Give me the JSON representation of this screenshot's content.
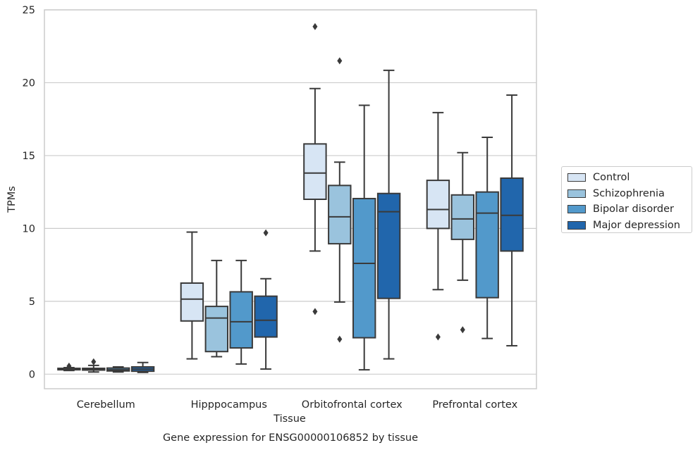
{
  "chart_data": {
    "type": "box",
    "title": "",
    "caption": "Gene expression for ENSG00000106852 by tissue",
    "xlabel": "Tissue",
    "ylabel": "TPMs",
    "ylim": [
      -1,
      25
    ],
    "yticks": [
      0,
      5,
      10,
      15,
      20,
      25
    ],
    "grid": "horizontal",
    "legend_position": "right",
    "categories": [
      "Cerebellum",
      "Hipppocampus",
      "Orbitofrontal cortex",
      "Prefrontal cortex"
    ],
    "series": [
      {
        "name": "Control",
        "color": "#d7e5f4",
        "boxes": [
          {
            "whislo": 0.25,
            "q1": 0.3,
            "med": 0.35,
            "q3": 0.4,
            "whishi": 0.45,
            "fliers": [
              0.55
            ]
          },
          {
            "whislo": 1.05,
            "q1": 3.65,
            "med": 5.15,
            "q3": 6.25,
            "whishi": 9.75,
            "fliers": []
          },
          {
            "whislo": 8.45,
            "q1": 12.0,
            "med": 13.8,
            "q3": 15.8,
            "whishi": 19.6,
            "fliers": [
              4.3,
              23.85
            ]
          },
          {
            "whislo": 5.8,
            "q1": 10.0,
            "med": 11.3,
            "q3": 13.3,
            "whishi": 17.95,
            "fliers": [
              2.55
            ]
          }
        ]
      },
      {
        "name": "Schizophrenia",
        "color": "#9ac3dd",
        "boxes": [
          {
            "whislo": 0.15,
            "q1": 0.28,
            "med": 0.32,
            "q3": 0.4,
            "whishi": 0.6,
            "fliers": [
              0.85
            ]
          },
          {
            "whislo": 1.2,
            "q1": 1.55,
            "med": 3.85,
            "q3": 4.65,
            "whishi": 7.8,
            "fliers": []
          },
          {
            "whislo": 4.95,
            "q1": 8.95,
            "med": 10.8,
            "q3": 12.95,
            "whishi": 14.55,
            "fliers": [
              2.4,
              21.5
            ]
          },
          {
            "whislo": 6.45,
            "q1": 9.25,
            "med": 10.65,
            "q3": 12.3,
            "whishi": 15.2,
            "fliers": [
              3.05
            ]
          }
        ]
      },
      {
        "name": "Bipolar disorder",
        "color": "#5299cb",
        "boxes": [
          {
            "whislo": 0.15,
            "q1": 0.22,
            "med": 0.3,
            "q3": 0.42,
            "whishi": 0.5,
            "fliers": []
          },
          {
            "whislo": 0.7,
            "q1": 1.8,
            "med": 3.6,
            "q3": 5.65,
            "whishi": 7.8,
            "fliers": []
          },
          {
            "whislo": 0.3,
            "q1": 2.5,
            "med": 7.6,
            "q3": 12.05,
            "whishi": 18.45,
            "fliers": []
          },
          {
            "whislo": 2.45,
            "q1": 5.25,
            "med": 11.05,
            "q3": 12.5,
            "whishi": 16.25,
            "fliers": []
          }
        ]
      },
      {
        "name": "Major depression",
        "color": "#2166ac",
        "boxes": [
          {
            "whislo": 0.12,
            "q1": 0.2,
            "med": 0.35,
            "q3": 0.5,
            "whishi": 0.8,
            "fliers": []
          },
          {
            "whislo": 0.35,
            "q1": 2.55,
            "med": 3.7,
            "q3": 5.35,
            "whishi": 6.55,
            "fliers": [
              9.7
            ]
          },
          {
            "whislo": 1.05,
            "q1": 5.2,
            "med": 11.15,
            "q3": 12.4,
            "whishi": 20.85,
            "fliers": []
          },
          {
            "whislo": 1.95,
            "q1": 8.45,
            "med": 10.9,
            "q3": 13.45,
            "whishi": 19.15,
            "fliers": []
          }
        ]
      }
    ]
  }
}
